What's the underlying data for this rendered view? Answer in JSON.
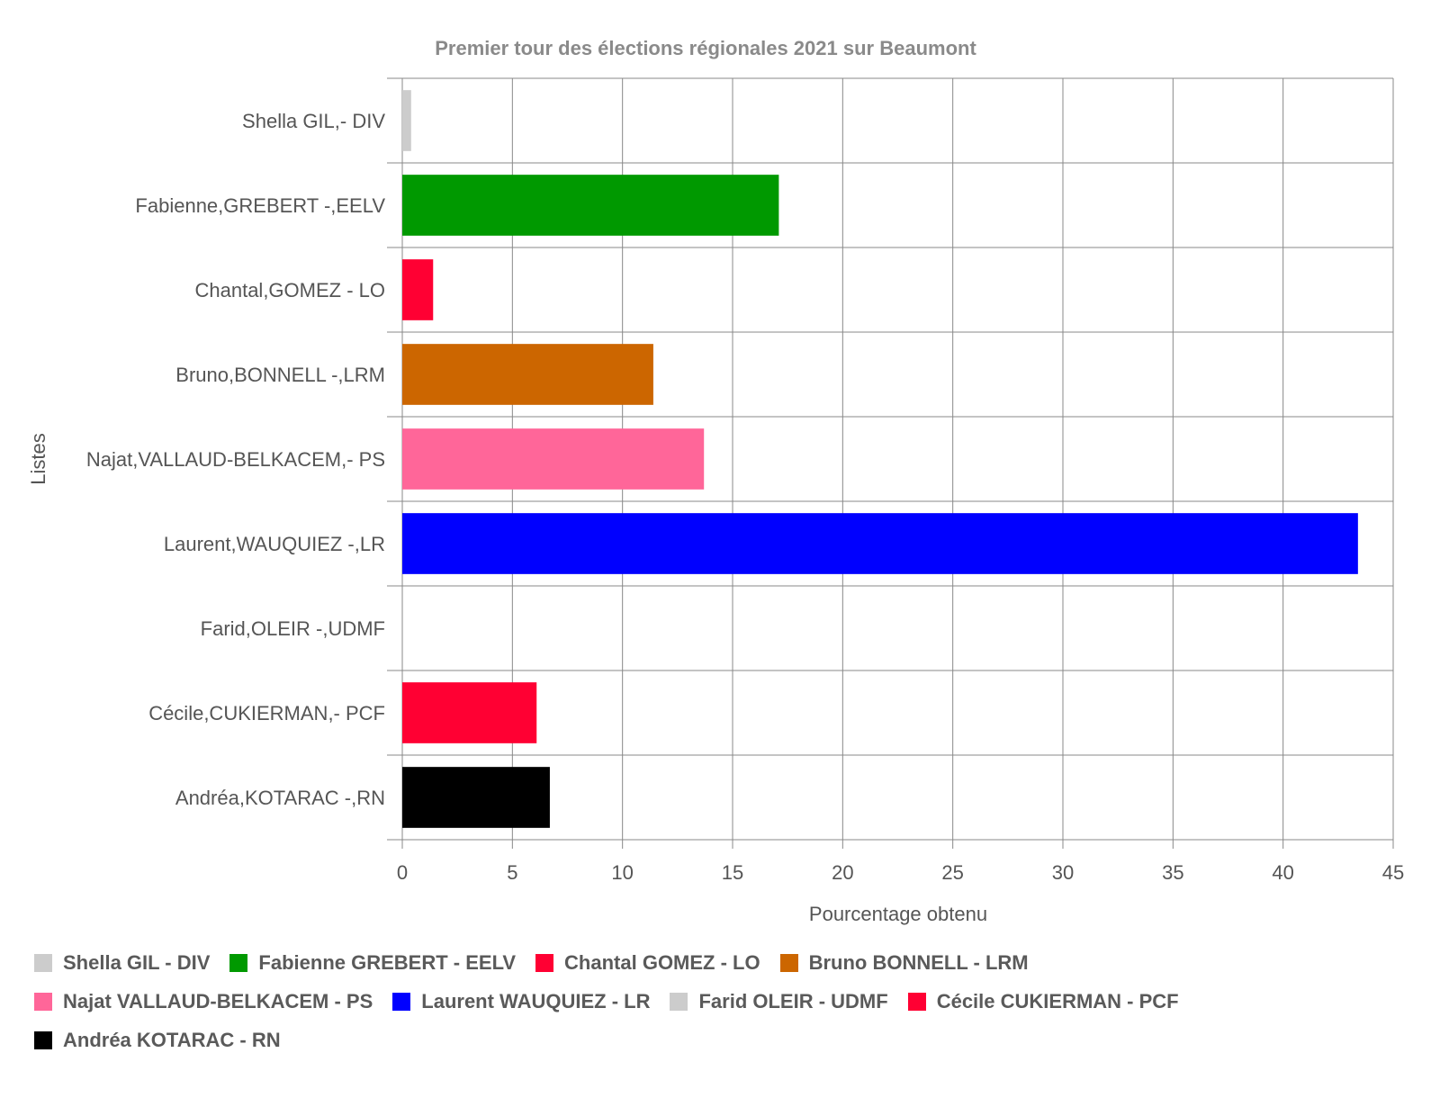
{
  "chart_data": {
    "type": "bar",
    "orientation": "horizontal",
    "title": "Premier tour des élections régionales 2021 sur Beaumont",
    "xlabel": "Pourcentage obtenu",
    "ylabel": "Listes",
    "xlim": [
      0,
      45
    ],
    "xticks": [
      0,
      5,
      10,
      15,
      20,
      25,
      30,
      35,
      40,
      45
    ],
    "grid": true,
    "legend_position": "bottom",
    "categories": [
      "Shella GIL,- DIV",
      "Fabienne,GREBERT -,EELV",
      "Chantal,GOMEZ - LO",
      "Bruno,BONNELL -,LRM",
      "Najat,VALLAUD-BELKACEM,- PS",
      "Laurent,WAUQUIEZ -,LR",
      "Farid,OLEIR -,UDMF",
      "Cécile,CUKIERMAN,- PCF",
      "Andréa,KOTARAC -,RN"
    ],
    "values": [
      0.4,
      17.1,
      1.4,
      11.4,
      13.7,
      43.4,
      0,
      6.1,
      6.7
    ],
    "colors": [
      "#cccccc",
      "#009900",
      "#ff0033",
      "#cc6600",
      "#ff6699",
      "#0000ff",
      "#cccccc",
      "#ff0033",
      "#000000"
    ],
    "legend": [
      {
        "label": "Shella GIL - DIV",
        "color": "#cccccc"
      },
      {
        "label": "Fabienne GREBERT - EELV",
        "color": "#009900"
      },
      {
        "label": "Chantal GOMEZ - LO",
        "color": "#ff0033"
      },
      {
        "label": "Bruno BONNELL - LRM",
        "color": "#cc6600"
      },
      {
        "label": "Najat VALLAUD-BELKACEM - PS",
        "color": "#ff6699"
      },
      {
        "label": "Laurent WAUQUIEZ - LR",
        "color": "#0000ff"
      },
      {
        "label": "Farid OLEIR - UDMF",
        "color": "#cccccc"
      },
      {
        "label": "Cécile CUKIERMAN - PCF",
        "color": "#ff0033"
      },
      {
        "label": "Andréa KOTARAC - RN",
        "color": "#000000"
      }
    ]
  }
}
